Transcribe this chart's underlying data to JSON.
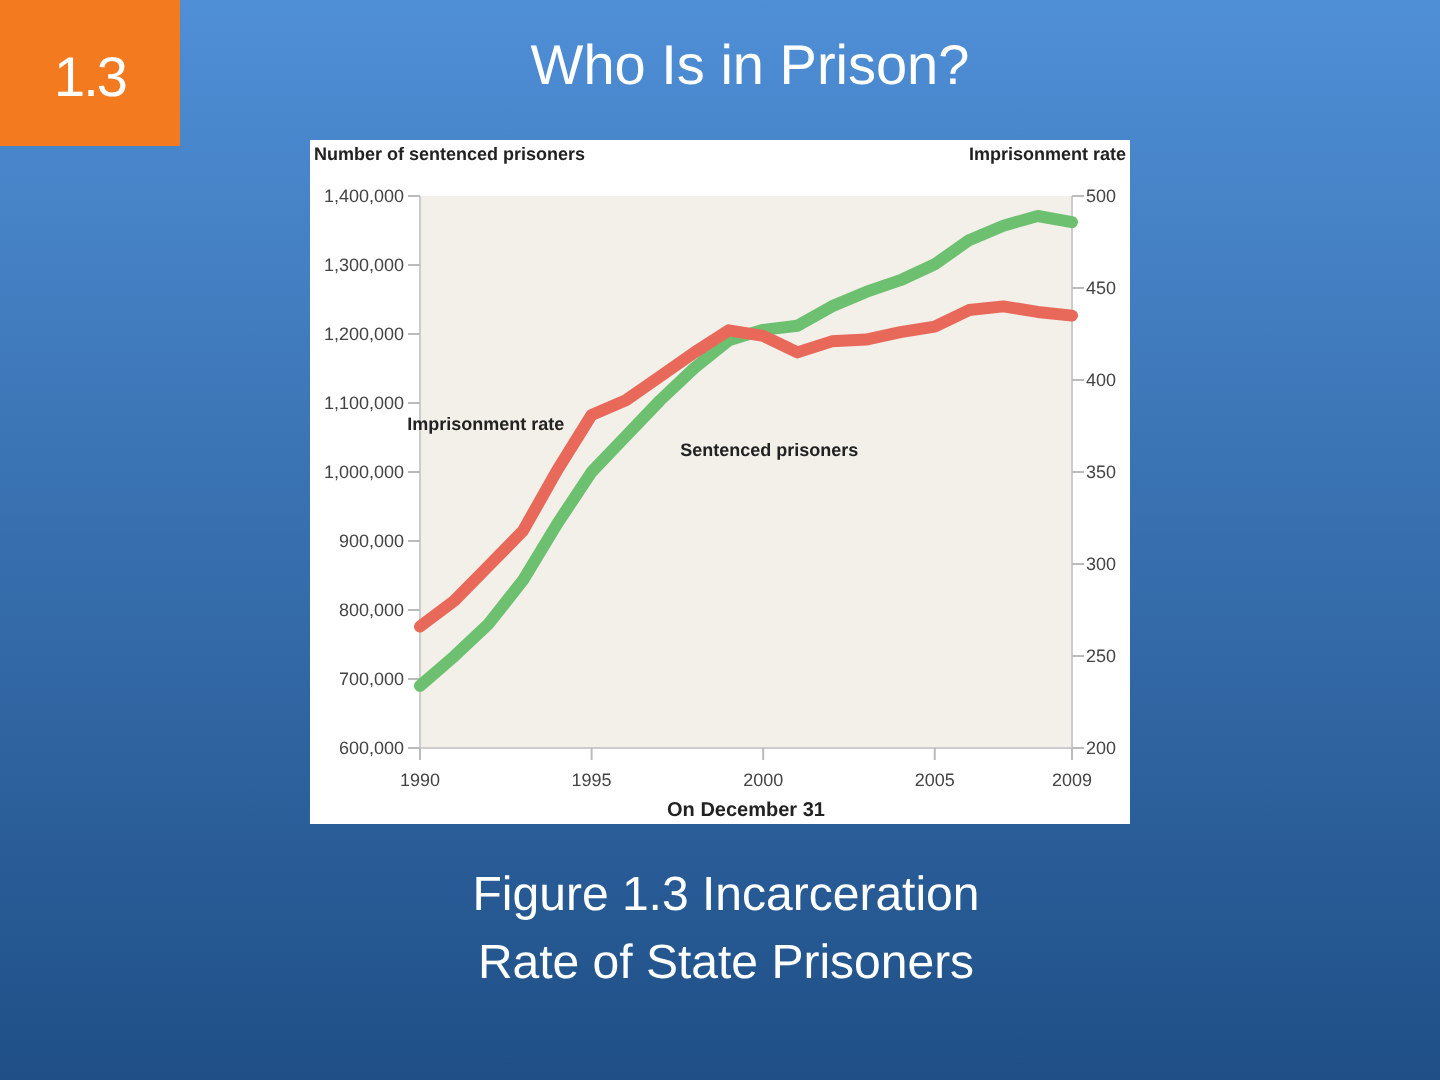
{
  "chart_data": {
    "type": "line",
    "title": "Who Is in Prison?",
    "annotations": [
      "1.3",
      "Figure 1.3 Incarceration Rate of State Prisoners"
    ],
    "xlabel": "On December 31",
    "ylabel": "Number of sentenced prisoners",
    "y2label": "Imprisonment rate",
    "x": [
      1990,
      1991,
      1992,
      1993,
      1994,
      1995,
      1996,
      1997,
      1998,
      1999,
      2000,
      2001,
      2002,
      2003,
      2004,
      2005,
      2006,
      2007,
      2008,
      2009
    ],
    "series": [
      {
        "name": "Sentenced prisoners",
        "color": "#6cc070",
        "values": [
          690000,
          733000,
          780000,
          843000,
          925000,
          1000000,
          1052000,
          1104000,
          1151000,
          1191000,
          1206000,
          1212000,
          1240000,
          1261000,
          1278000,
          1301000,
          1336000,
          1357000,
          1371000,
          1362000
        ]
      },
      {
        "name": "Imprisonment rate",
        "color": "#e8685a",
        "axis": "y2",
        "values": [
          266,
          280,
          299,
          318,
          351,
          381,
          389,
          402,
          415,
          427,
          424,
          415,
          421,
          422,
          426,
          429,
          438,
          440,
          437,
          435
        ]
      }
    ],
    "xlim": [
      1990,
      2009
    ],
    "xticks": [
      1990,
      1995,
      2000,
      2005,
      2009
    ],
    "ylim": [
      600000,
      1400000
    ],
    "yticks": [
      {
        "value": 600000,
        "label": "600,000"
      },
      {
        "value": 700000,
        "label": "700,000"
      },
      {
        "value": 800000,
        "label": "800,000"
      },
      {
        "value": 900000,
        "label": "900,000"
      },
      {
        "value": 1000000,
        "label": "1,000,000"
      },
      {
        "value": 1100000,
        "label": "1,100,000"
      },
      {
        "value": 1200000,
        "label": "1,200,000"
      },
      {
        "value": 1300000,
        "label": "1,300,000"
      },
      {
        "value": 1400000,
        "label": "1,400,000"
      }
    ],
    "y2lim": [
      200,
      500
    ],
    "y2ticks": [
      200,
      250,
      300,
      350,
      400,
      450,
      500
    ],
    "grid": false,
    "legend": false,
    "marker": "none",
    "line_style": "solid"
  }
}
